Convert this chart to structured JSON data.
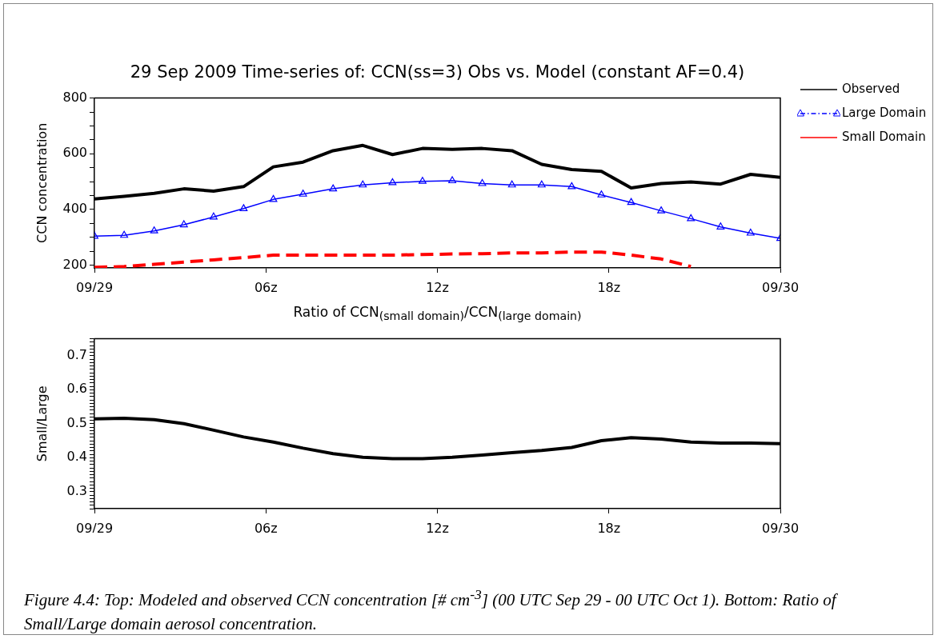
{
  "chart_data": [
    {
      "type": "line",
      "title": "29 Sep 2009 Time-series of: CCN(ss=3) Obs vs. Model (constant AF=0.4)",
      "ylabel": "CCN concentration",
      "legend": "right",
      "grid": false,
      "x": [
        0,
        1.04,
        2.09,
        3.13,
        4.17,
        5.22,
        6.26,
        7.3,
        8.35,
        9.39,
        10.43,
        11.48,
        12.52,
        13.57,
        14.61,
        15.65,
        16.7,
        17.74,
        18.78,
        19.83,
        20.87,
        21.91,
        22.96,
        24
      ],
      "xlim": [
        0,
        24
      ],
      "xticks": [
        {
          "value": 0,
          "label": "09/29"
        },
        {
          "value": 6,
          "label": "06z"
        },
        {
          "value": 12,
          "label": "12z"
        },
        {
          "value": 18,
          "label": "18z"
        },
        {
          "value": 24,
          "label": "09/30"
        }
      ],
      "ylim": [
        190,
        800
      ],
      "yticks": [
        200,
        {
          "value": 250,
          "label": null
        },
        {
          "value": 300,
          "label": null
        },
        {
          "value": 350,
          "label": null
        },
        400,
        {
          "value": 450,
          "label": null
        },
        {
          "value": 500,
          "label": null
        },
        {
          "value": 550,
          "label": null
        },
        600,
        {
          "value": 650,
          "label": null
        },
        {
          "value": 700,
          "label": null
        },
        {
          "value": 750,
          "label": null
        },
        800
      ],
      "series": [
        {
          "name": "Observed",
          "color": "#000000",
          "marker": "none",
          "line_style": "solid",
          "values": [
            438,
            447,
            458,
            474,
            466,
            482,
            553,
            570,
            611,
            630,
            597,
            619,
            616,
            619,
            611,
            562,
            543,
            537,
            477,
            493,
            499,
            491,
            526,
            515
          ]
        },
        {
          "name": "Large Domain",
          "color": "#0000ff",
          "marker": "triangle",
          "line_style": "solid",
          "values": [
            304,
            307,
            323,
            345,
            373,
            403,
            436,
            455,
            474,
            488,
            496,
            501,
            503,
            493,
            488,
            488,
            482,
            452,
            425,
            395,
            367,
            337,
            315,
            296
          ]
        },
        {
          "name": "Small Domain",
          "color": "#ff0000",
          "marker": "none",
          "line_style": "dashed",
          "values": [
            192,
            195,
            203,
            211,
            219,
            227,
            236,
            236,
            236,
            236,
            236,
            238,
            240,
            241,
            244,
            244,
            247,
            247,
            236,
            222,
            195,
            null,
            null,
            null
          ]
        }
      ]
    },
    {
      "type": "line",
      "title": "Ratio of CCN$_{(small domain)}$/CCN$_{(large domain)}$",
      "ylabel": "Small/Large",
      "grid": false,
      "marker": "none",
      "line_style": "solid",
      "x": [
        0,
        1.04,
        2.09,
        3.13,
        4.17,
        5.22,
        6.26,
        7.3,
        8.35,
        9.39,
        10.43,
        11.48,
        12.52,
        13.57,
        14.61,
        15.65,
        16.7,
        17.74,
        18.78,
        19.83,
        20.87,
        21.91,
        22.96,
        24
      ],
      "xlim": [
        0,
        24
      ],
      "xticks": [
        {
          "value": 0,
          "label": "09/29"
        },
        {
          "value": 6,
          "label": "06z"
        },
        {
          "value": 12,
          "label": "12z"
        },
        {
          "value": 18,
          "label": "18z"
        },
        {
          "value": 24,
          "label": "09/30"
        }
      ],
      "ylim": [
        0.25,
        0.75
      ],
      "yticks": [
        {
          "value": 0.25,
          "label": null
        },
        {
          "value": 0.26,
          "label": null
        },
        {
          "value": 0.27,
          "label": null
        },
        {
          "value": 0.28,
          "label": null
        },
        {
          "value": 0.29,
          "label": null
        },
        0.3,
        {
          "value": 0.31,
          "label": null
        },
        {
          "value": 0.32,
          "label": null
        },
        {
          "value": 0.33,
          "label": null
        },
        {
          "value": 0.34,
          "label": null
        },
        {
          "value": 0.35,
          "label": null
        },
        {
          "value": 0.36,
          "label": null
        },
        {
          "value": 0.37,
          "label": null
        },
        {
          "value": 0.38,
          "label": null
        },
        {
          "value": 0.39,
          "label": null
        },
        0.4,
        {
          "value": 0.41,
          "label": null
        },
        {
          "value": 0.42,
          "label": null
        },
        {
          "value": 0.43,
          "label": null
        },
        {
          "value": 0.44,
          "label": null
        },
        {
          "value": 0.45,
          "label": null
        },
        {
          "value": 0.46,
          "label": null
        },
        {
          "value": 0.47,
          "label": null
        },
        {
          "value": 0.48,
          "label": null
        },
        {
          "value": 0.49,
          "label": null
        },
        0.5,
        {
          "value": 0.51,
          "label": null
        },
        {
          "value": 0.52,
          "label": null
        },
        {
          "value": 0.53,
          "label": null
        },
        {
          "value": 0.54,
          "label": null
        },
        {
          "value": 0.55,
          "label": null
        },
        {
          "value": 0.56,
          "label": null
        },
        {
          "value": 0.57,
          "label": null
        },
        {
          "value": 0.58,
          "label": null
        },
        {
          "value": 0.59,
          "label": null
        },
        0.6,
        {
          "value": 0.61,
          "label": null
        },
        {
          "value": 0.62,
          "label": null
        },
        {
          "value": 0.63,
          "label": null
        },
        {
          "value": 0.64,
          "label": null
        },
        {
          "value": 0.65,
          "label": null
        },
        {
          "value": 0.66,
          "label": null
        },
        {
          "value": 0.67,
          "label": null
        },
        {
          "value": 0.68,
          "label": null
        },
        {
          "value": 0.69,
          "label": null
        },
        0.7,
        {
          "value": 0.71,
          "label": null
        },
        {
          "value": 0.72,
          "label": null
        },
        {
          "value": 0.73,
          "label": null
        },
        {
          "value": 0.74,
          "label": null
        },
        {
          "value": 0.75,
          "label": null
        }
      ],
      "series": [
        {
          "color": "#000000",
          "values": [
            0.514,
            0.516,
            0.512,
            0.5,
            0.481,
            0.461,
            0.446,
            0.428,
            0.412,
            0.401,
            0.397,
            0.397,
            0.401,
            0.408,
            0.415,
            0.421,
            0.43,
            0.45,
            0.459,
            0.455,
            0.446,
            0.443,
            0.443,
            0.441
          ]
        }
      ],
      "annotations": [
        "Figure 4.4: Top: Modeled and observed CCN concentration [# cm$^{-3}$] (00 UTC Sep 29 - 00 UTC Oct 1). Bottom: Ratio of Small/Large domain aerosol concentration."
      ]
    }
  ]
}
